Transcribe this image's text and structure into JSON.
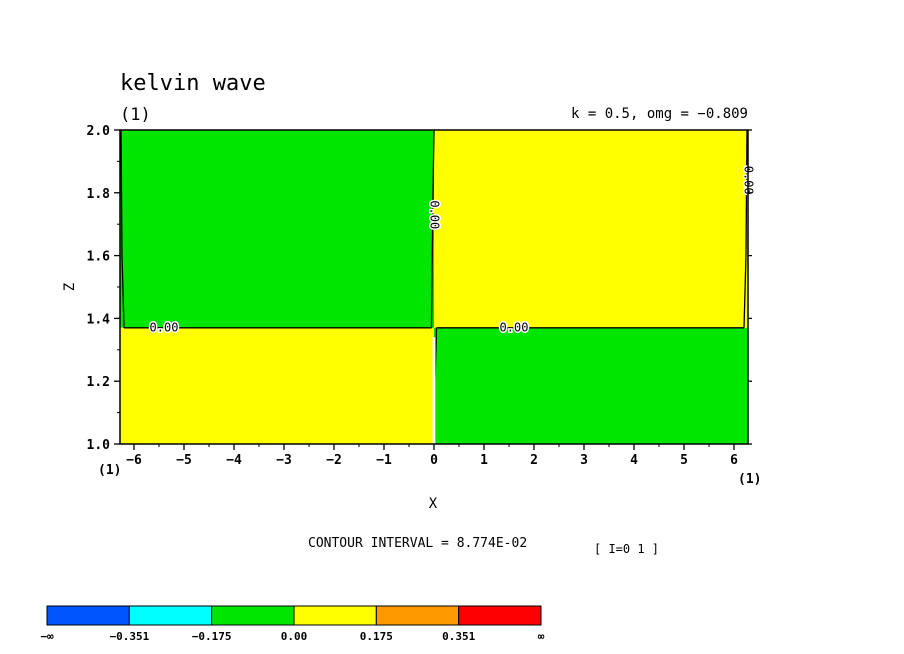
{
  "chart_data": {
    "type": "heatmap",
    "title": "kelvin wave",
    "subtitle_left": "(1)",
    "subtitle_right": "k = 0.5, omg = −0.809",
    "xlabel": "X",
    "ylabel": "Z",
    "xlim": [
      -6.28,
      6.28
    ],
    "ylim": [
      1.0,
      2.0
    ],
    "x_ticks": [
      -6,
      -5,
      -4,
      -3,
      -2,
      -1,
      0,
      1,
      2,
      3,
      4,
      5,
      6
    ],
    "y_ticks": [
      1.0,
      1.2,
      1.4,
      1.6,
      1.8,
      2.0
    ],
    "x_tick_labels": [
      "−6",
      "−5",
      "−4",
      "−3",
      "−2",
      "−1",
      "0",
      "1",
      "2",
      "3",
      "4",
      "5",
      "6"
    ],
    "y_tick_labels": [
      "1.0",
      "1.2",
      "1.4",
      "1.6",
      "1.8",
      "2.0"
    ],
    "x_axis_end_labels": [
      "(1)",
      "(1)"
    ],
    "regions": [
      {
        "x": [
          -6.28,
          0.0
        ],
        "z": [
          1.37,
          2.0
        ],
        "color": "#00e600",
        "range": "-0.175 to 0.00"
      },
      {
        "x": [
          0.0,
          6.28
        ],
        "z": [
          1.37,
          2.0
        ],
        "color": "#ffff00",
        "range": "0.00 to 0.175"
      },
      {
        "x": [
          -6.28,
          0.0
        ],
        "z": [
          1.0,
          1.37
        ],
        "color": "#ffff00",
        "range": "0.00 to 0.175"
      },
      {
        "x": [
          0.0,
          6.28
        ],
        "z": [
          1.0,
          1.37
        ],
        "color": "#00e600",
        "range": "-0.175 to 0.00"
      }
    ],
    "contour_labels": [
      {
        "text": "0.00",
        "x": -5.4,
        "z": 1.37,
        "rotate": 0
      },
      {
        "text": "0.00",
        "x": 1.6,
        "z": 1.37,
        "rotate": 0
      },
      {
        "text": "0.00",
        "x": 0.0,
        "z": 1.73,
        "rotate": 90
      },
      {
        "text": "0.00",
        "x": 6.28,
        "z": 1.84,
        "rotate": 90
      }
    ],
    "contour_interval_text": "CONTOUR INTERVAL = 8.774E-02",
    "index_text": "[ I=0 1 ]",
    "colorbar": {
      "colors": [
        "#0055ff",
        "#00ffff",
        "#00e600",
        "#ffff00",
        "#ff9900",
        "#ff0000"
      ],
      "labels": [
        "−∞",
        "−0.351",
        "−0.175",
        "0.00",
        "0.175",
        "0.351",
        "∞"
      ]
    }
  }
}
